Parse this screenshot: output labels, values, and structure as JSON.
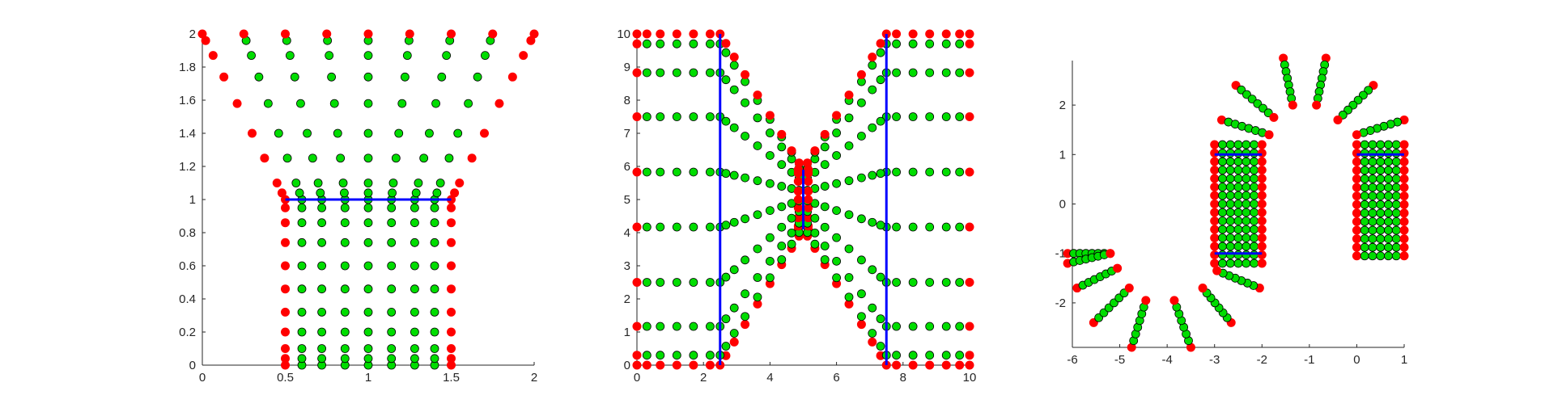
{
  "chart_data": [
    {
      "type": "scatter",
      "xlim": [
        0,
        2
      ],
      "ylim": [
        0,
        2
      ],
      "xticks": [
        "0",
        "0.5",
        "1",
        "1.5",
        "2"
      ],
      "yticks": [
        "0",
        "0.2",
        "0.4",
        "0.6",
        "0.8",
        "1",
        "1.2",
        "1.4",
        "1.6",
        "1.8",
        "2"
      ],
      "axes_box": "left-bottom",
      "grid": false,
      "colors": {
        "node": "#00dd00",
        "boundary": "#ff0000",
        "segment": "#0000ff",
        "axis": "#262626"
      },
      "segments": [
        {
          "x": [
            0.5,
            1.5
          ],
          "y": [
            1,
            1
          ]
        }
      ],
      "lower_rows_y": [
        0,
        0.04,
        0.1,
        0.2,
        0.32,
        0.46,
        0.6,
        0.74,
        0.86,
        0.95,
        1.0
      ],
      "lower_cols_x": [
        0.5,
        0.6,
        0.72,
        0.86,
        1.0,
        1.14,
        1.28,
        1.4,
        1.5
      ],
      "rays": {
        "origin_y": 1,
        "origin_x_bottom": [
          0.5,
          0.6,
          0.72,
          0.86,
          1.0,
          1.14,
          1.28,
          1.4,
          1.5
        ],
        "x_top": [
          0,
          0.25,
          0.5,
          0.75,
          1.0,
          1.25,
          1.5,
          1.75,
          2.0
        ],
        "levels_y": [
          1.04,
          1.1,
          1.25,
          1.4,
          1.58,
          1.74,
          1.87,
          1.96,
          2.0
        ]
      }
    },
    {
      "type": "scatter",
      "xlim": [
        0,
        10
      ],
      "ylim": [
        0,
        10
      ],
      "xticks": [
        "0",
        "2",
        "4",
        "6",
        "8",
        "10"
      ],
      "yticks": [
        "0",
        "1",
        "2",
        "3",
        "4",
        "5",
        "6",
        "7",
        "8",
        "9",
        "10"
      ],
      "axes_box": "left-bottom",
      "grid": false,
      "colors": {
        "node": "#00dd00",
        "boundary": "#ff0000",
        "segment": "#0000ff",
        "axis": "#262626"
      },
      "segments": [
        {
          "x": [
            2.5,
            2.5
          ],
          "y": [
            0,
            10
          ]
        },
        {
          "x": [
            7.5,
            7.5
          ],
          "y": [
            0,
            10
          ]
        },
        {
          "x": [
            5,
            5
          ],
          "y": [
            4.1,
            5.9
          ]
        }
      ],
      "row_y": [
        0,
        0.3,
        1.17,
        2.5,
        4.17,
        5.83,
        7.5,
        8.83,
        9.7,
        10
      ],
      "outer_x_left": [
        0,
        0.3,
        0.7,
        1.2,
        1.7,
        2.2,
        2.5
      ],
      "outer_x_right": [
        7.5,
        7.8,
        8.3,
        8.8,
        9.3,
        9.7,
        10
      ],
      "inner_t": [
        0,
        0.07,
        0.17,
        0.3,
        0.45,
        0.6,
        0.74,
        0.86,
        0.95,
        1.0
      ],
      "inner_target_y": [
        4.1,
        4.2,
        4.45,
        4.75,
        5.0,
        5.25,
        5.55,
        5.8,
        5.9,
        5.9
      ]
    },
    {
      "type": "scatter",
      "xlim": [
        -6,
        1
      ],
      "ylim": [
        -2.9,
        2.9
      ],
      "xticks": [
        "-6",
        "-5",
        "-4",
        "-3",
        "-2",
        "-1",
        "0",
        "1"
      ],
      "yticks": [
        "-2",
        "-1",
        "0",
        "1",
        "2"
      ],
      "axes_box": "left-bottom",
      "grid": false,
      "colors": {
        "node": "#00dd00",
        "boundary": "#ff0000",
        "segment": "#0000ff",
        "axis": "#262626"
      },
      "segments": [
        {
          "x": [
            -3,
            -2
          ],
          "y": [
            1,
            1
          ]
        },
        {
          "x": [
            -3,
            -2
          ],
          "y": [
            -1,
            -1
          ]
        },
        {
          "x": [
            0,
            1
          ],
          "y": [
            1,
            1
          ]
        }
      ],
      "blocks": [
        {
          "x": [
            -3,
            -2
          ],
          "y_from": -1.2,
          "y_to": 1.2,
          "rows": 15
        },
        {
          "x": [
            0,
            1
          ],
          "y_from": -1.05,
          "y_to": 1.2,
          "rows": 14
        }
      ],
      "spokes": [
        {
          "x1": -1.55,
          "y1": 2.95,
          "x2": -1.35,
          "y2": 2.0
        },
        {
          "x1": -0.65,
          "y1": 2.95,
          "x2": -0.85,
          "y2": 2.0
        },
        {
          "x1": -2.55,
          "y1": 2.4,
          "x2": -1.75,
          "y2": 1.75
        },
        {
          "x1": 0.35,
          "y1": 2.4,
          "x2": -0.4,
          "y2": 1.7
        },
        {
          "x1": -2.85,
          "y1": 1.7,
          "x2": -1.85,
          "y2": 1.4
        },
        {
          "x1": 1.0,
          "y1": 1.7,
          "x2": 0.0,
          "y2": 1.4
        },
        {
          "x1": -6.1,
          "y1": -1.0,
          "x2": -5.2,
          "y2": -1.0
        },
        {
          "x1": -6.1,
          "y1": -1.2,
          "x2": -5.2,
          "y2": -1.0
        },
        {
          "x1": -5.9,
          "y1": -1.7,
          "x2": -5.05,
          "y2": -1.3
        },
        {
          "x1": -5.55,
          "y1": -2.4,
          "x2": -4.8,
          "y2": -1.7
        },
        {
          "x1": -4.75,
          "y1": -2.9,
          "x2": -4.45,
          "y2": -1.95
        },
        {
          "x1": -3.5,
          "y1": -2.9,
          "x2": -3.85,
          "y2": -1.95
        },
        {
          "x1": -2.65,
          "y1": -2.4,
          "x2": -3.25,
          "y2": -1.7
        },
        {
          "x1": -2.05,
          "y1": -1.7,
          "x2": -2.95,
          "y2": -1.35
        }
      ]
    }
  ]
}
